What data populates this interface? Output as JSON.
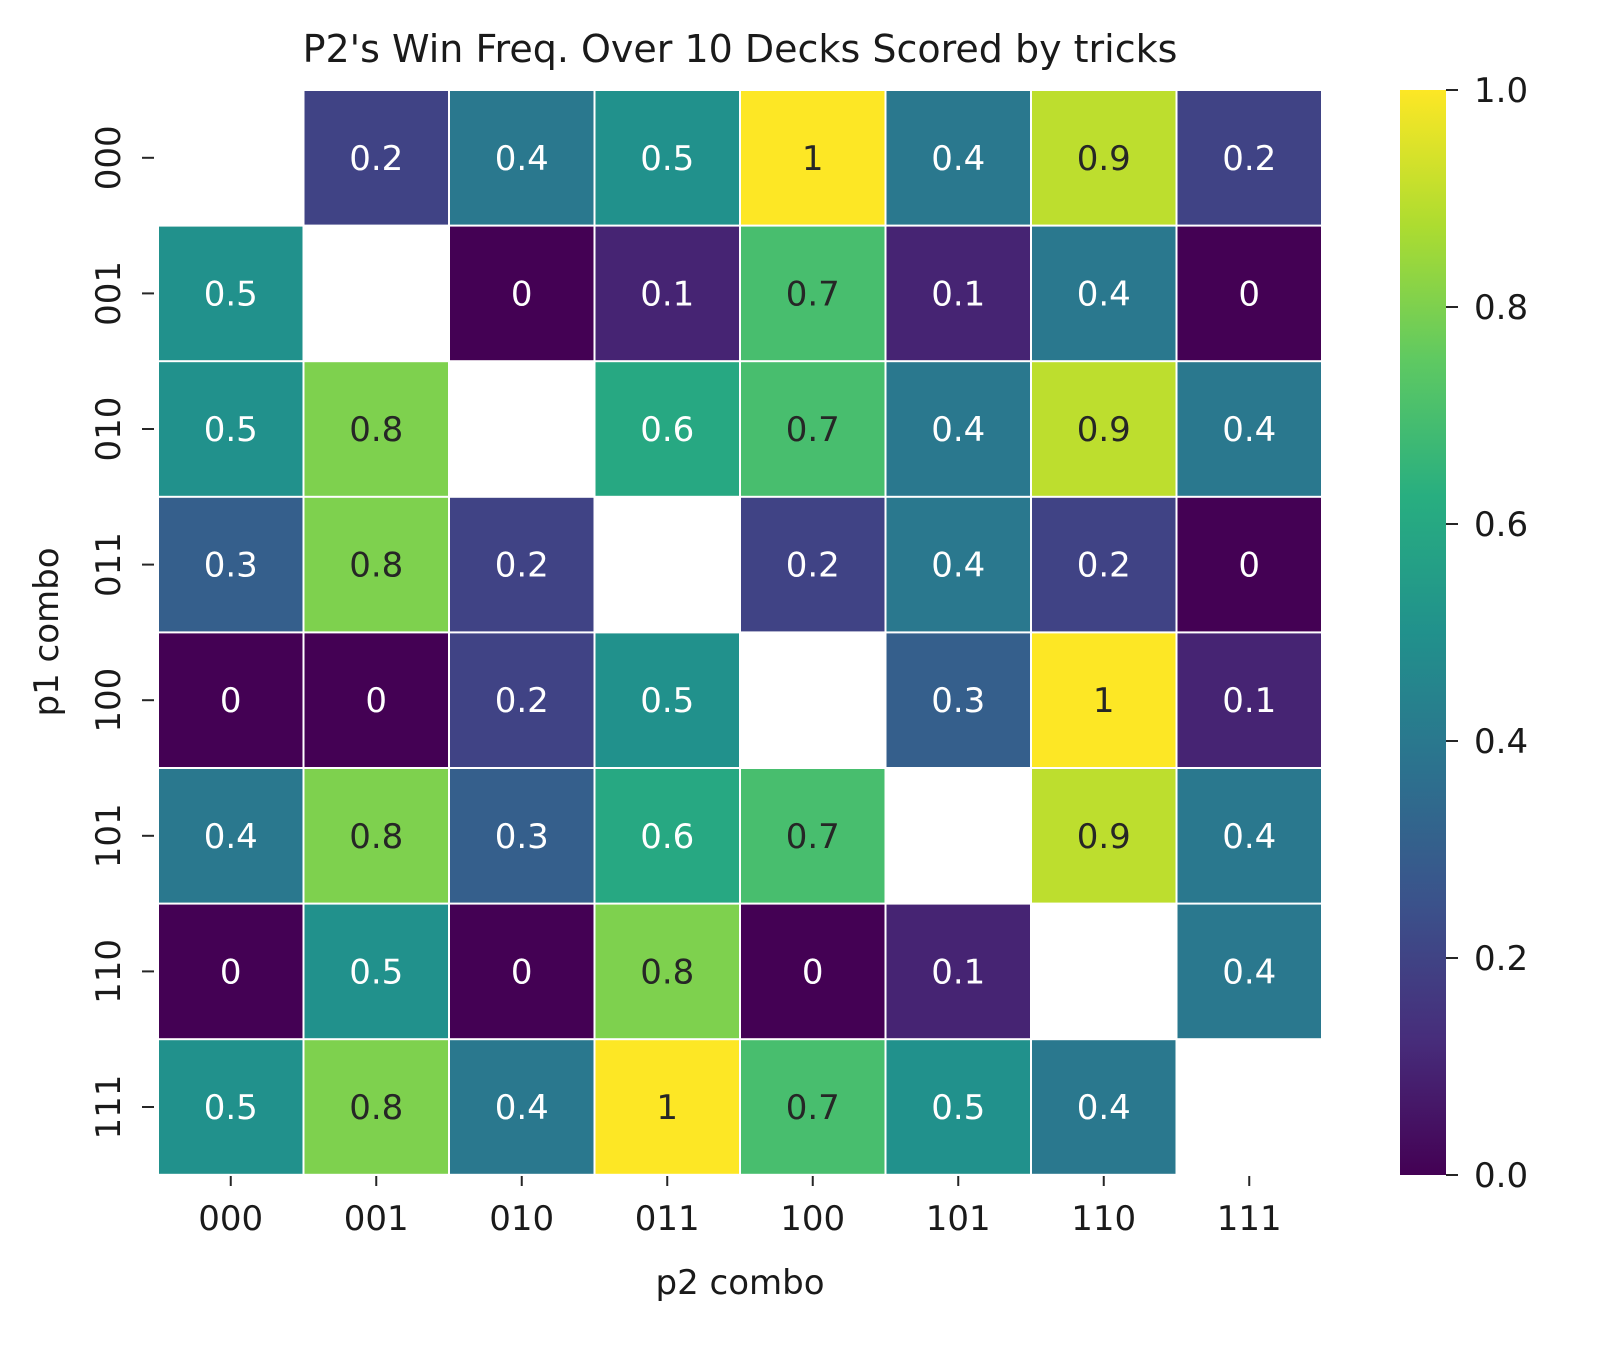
{
  "chart_data": {
    "type": "heatmap",
    "title": "P2's Win Freq. Over 10 Decks Scored by tricks",
    "xlabel": "p2 combo",
    "ylabel": "p1 combo",
    "x_categories": [
      "000",
      "001",
      "010",
      "011",
      "100",
      "101",
      "110",
      "111"
    ],
    "y_categories": [
      "000",
      "001",
      "010",
      "011",
      "100",
      "101",
      "110",
      "111"
    ],
    "values": [
      [
        null,
        0.2,
        0.4,
        0.5,
        1,
        0.4,
        0.9,
        0.2
      ],
      [
        0.5,
        null,
        0,
        0.1,
        0.7,
        0.1,
        0.4,
        0
      ],
      [
        0.5,
        0.8,
        null,
        0.6,
        0.7,
        0.4,
        0.9,
        0.4
      ],
      [
        0.3,
        0.8,
        0.2,
        null,
        0.2,
        0.4,
        0.2,
        0
      ],
      [
        0,
        0,
        0.2,
        0.5,
        null,
        0.3,
        1,
        0.1
      ],
      [
        0.4,
        0.8,
        0.3,
        0.6,
        0.7,
        null,
        0.9,
        0.4
      ],
      [
        0,
        0.5,
        0,
        0.8,
        0,
        0.1,
        null,
        0.4
      ],
      [
        0.5,
        0.8,
        0.4,
        1,
        0.7,
        0.5,
        0.4,
        null
      ]
    ],
    "colormap": "viridis",
    "vmin": 0,
    "vmax": 1,
    "colorbar_ticks": [
      "0.0",
      "0.2",
      "0.4",
      "0.6",
      "0.8",
      "1.0"
    ],
    "grid": false,
    "legend": "colorbar-right"
  }
}
